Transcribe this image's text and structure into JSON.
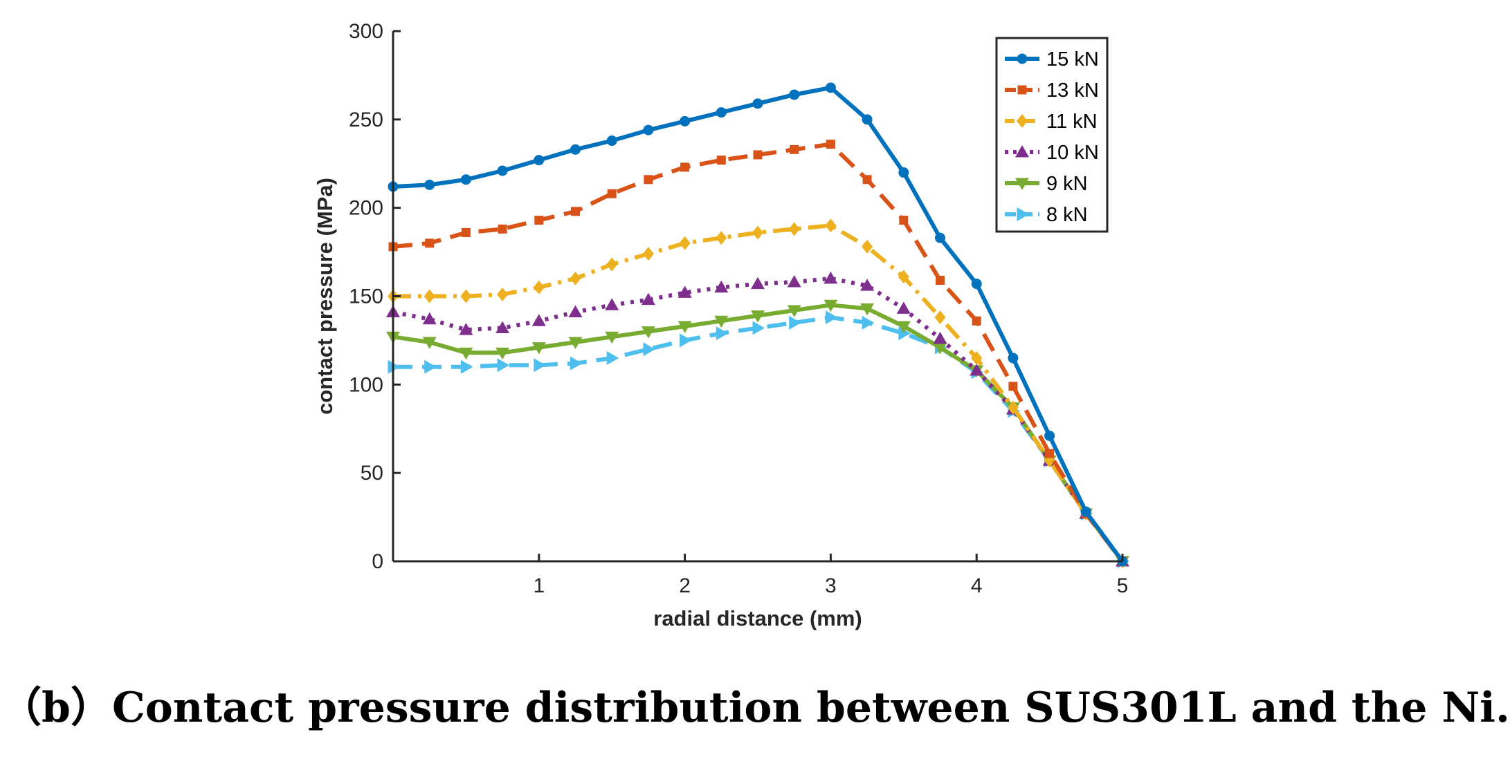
{
  "caption": "（b）Contact pressure distribution between SUS301L and the Ni.",
  "chart_data": {
    "type": "line",
    "title": "",
    "xlabel": "radial distance (mm)",
    "ylabel": "contact pressure (MPa)",
    "xlim": [
      0,
      5
    ],
    "ylim": [
      0,
      300
    ],
    "xticks": [
      1,
      2,
      3,
      4,
      5
    ],
    "yticks": [
      0,
      50,
      100,
      150,
      200,
      250,
      300
    ],
    "grid": false,
    "legend_position": "top-right",
    "x": [
      0,
      0.25,
      0.5,
      0.75,
      1,
      1.25,
      1.5,
      1.75,
      2,
      2.25,
      2.5,
      2.75,
      3,
      3.25,
      3.5,
      3.75,
      4,
      4.25,
      4.5,
      4.75,
      5
    ],
    "series": [
      {
        "name": "15 kN",
        "color": "#0072BD",
        "dash": "solid",
        "marker": "circle",
        "values": [
          212,
          213,
          216,
          221,
          227,
          233,
          238,
          244,
          249,
          254,
          259,
          264,
          268,
          250,
          220,
          183,
          157,
          115,
          71,
          28,
          0
        ]
      },
      {
        "name": "13 kN",
        "color": "#D95319",
        "dash": "dashed",
        "marker": "square",
        "values": [
          178,
          180,
          186,
          188,
          193,
          198,
          208,
          216,
          223,
          227,
          230,
          233,
          236,
          216,
          193,
          159,
          136,
          99,
          61,
          27,
          0
        ]
      },
      {
        "name": "11 kN",
        "color": "#EDB120",
        "dash": "dashdot",
        "marker": "diamond",
        "values": [
          150,
          150,
          150,
          151,
          155,
          160,
          168,
          174,
          180,
          183,
          186,
          188,
          190,
          178,
          161,
          138,
          115,
          87,
          57,
          27,
          0
        ]
      },
      {
        "name": "10 kN",
        "color": "#7E2F8E",
        "dash": "dotted",
        "marker": "triangle-up",
        "values": [
          141,
          137,
          131,
          132,
          136,
          141,
          145,
          148,
          152,
          155,
          157,
          158,
          160,
          156,
          143,
          126,
          108,
          86,
          57,
          27,
          0
        ]
      },
      {
        "name": "9 kN",
        "color": "#77AC30",
        "dash": "solid",
        "marker": "triangle-down",
        "values": [
          127,
          124,
          118,
          118,
          121,
          124,
          127,
          130,
          133,
          136,
          139,
          142,
          145,
          143,
          133,
          121,
          108,
          87,
          57,
          27,
          0
        ]
      },
      {
        "name": "8 kN",
        "color": "#4DBEEE",
        "dash": "dashed",
        "marker": "triangle-right",
        "values": [
          110,
          110,
          110,
          111,
          111,
          112,
          115,
          120,
          125,
          129,
          132,
          135,
          138,
          135,
          129,
          121,
          107,
          85,
          57,
          27,
          0
        ]
      }
    ]
  }
}
